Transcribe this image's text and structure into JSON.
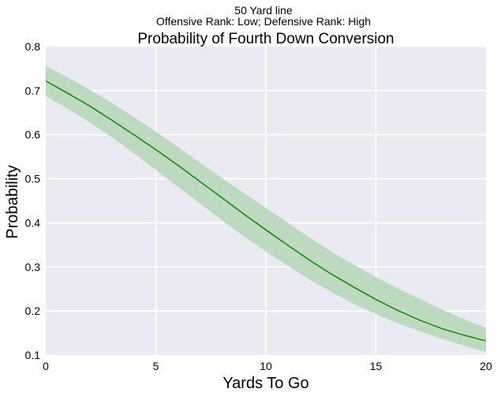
{
  "header": {
    "suptitle_line1": "50 Yard line",
    "suptitle_line2": "Offensive Rank: Low; Defensive Rank: High"
  },
  "colors": {
    "background": "#eaeaf2",
    "grid": "#ffffff",
    "line": "#008000",
    "band": "#bdd9c0"
  },
  "chart_data": {
    "type": "line",
    "title": "Probability of Fourth Down Conversion",
    "xlabel": "Yards To Go",
    "ylabel": "Probability",
    "xlim": [
      0,
      20
    ],
    "ylim": [
      0.1,
      0.8
    ],
    "xticks": [
      0,
      5,
      10,
      15,
      20
    ],
    "xtick_labels": [
      "0",
      "5",
      "10",
      "15",
      "20"
    ],
    "yticks": [
      0.1,
      0.2,
      0.3,
      0.4,
      0.5,
      0.6,
      0.7,
      0.8
    ],
    "ytick_labels": [
      "0.1",
      "0.2",
      "0.3",
      "0.4",
      "0.5",
      "0.6",
      "0.7",
      "0.8"
    ],
    "grid": true,
    "series": [
      {
        "x": [
          0,
          1,
          2,
          3,
          4,
          5,
          6,
          7,
          8,
          9,
          10,
          11,
          12,
          13,
          14,
          15,
          16,
          17,
          18,
          19,
          20
        ],
        "y": [
          0.722,
          0.694,
          0.665,
          0.633,
          0.6,
          0.566,
          0.531,
          0.494,
          0.457,
          0.42,
          0.384,
          0.349,
          0.315,
          0.283,
          0.254,
          0.226,
          0.201,
          0.179,
          0.16,
          0.145,
          0.132
        ],
        "lower": [
          0.688,
          0.659,
          0.628,
          0.594,
          0.558,
          0.52,
          0.482,
          0.444,
          0.406,
          0.369,
          0.335,
          0.302,
          0.271,
          0.242,
          0.216,
          0.193,
          0.172,
          0.154,
          0.137,
          0.121,
          0.107
        ],
        "upper": [
          0.756,
          0.73,
          0.702,
          0.672,
          0.64,
          0.607,
          0.572,
          0.537,
          0.502,
          0.468,
          0.434,
          0.4,
          0.366,
          0.334,
          0.305,
          0.277,
          0.251,
          0.227,
          0.203,
          0.182,
          0.162
        ]
      }
    ]
  }
}
